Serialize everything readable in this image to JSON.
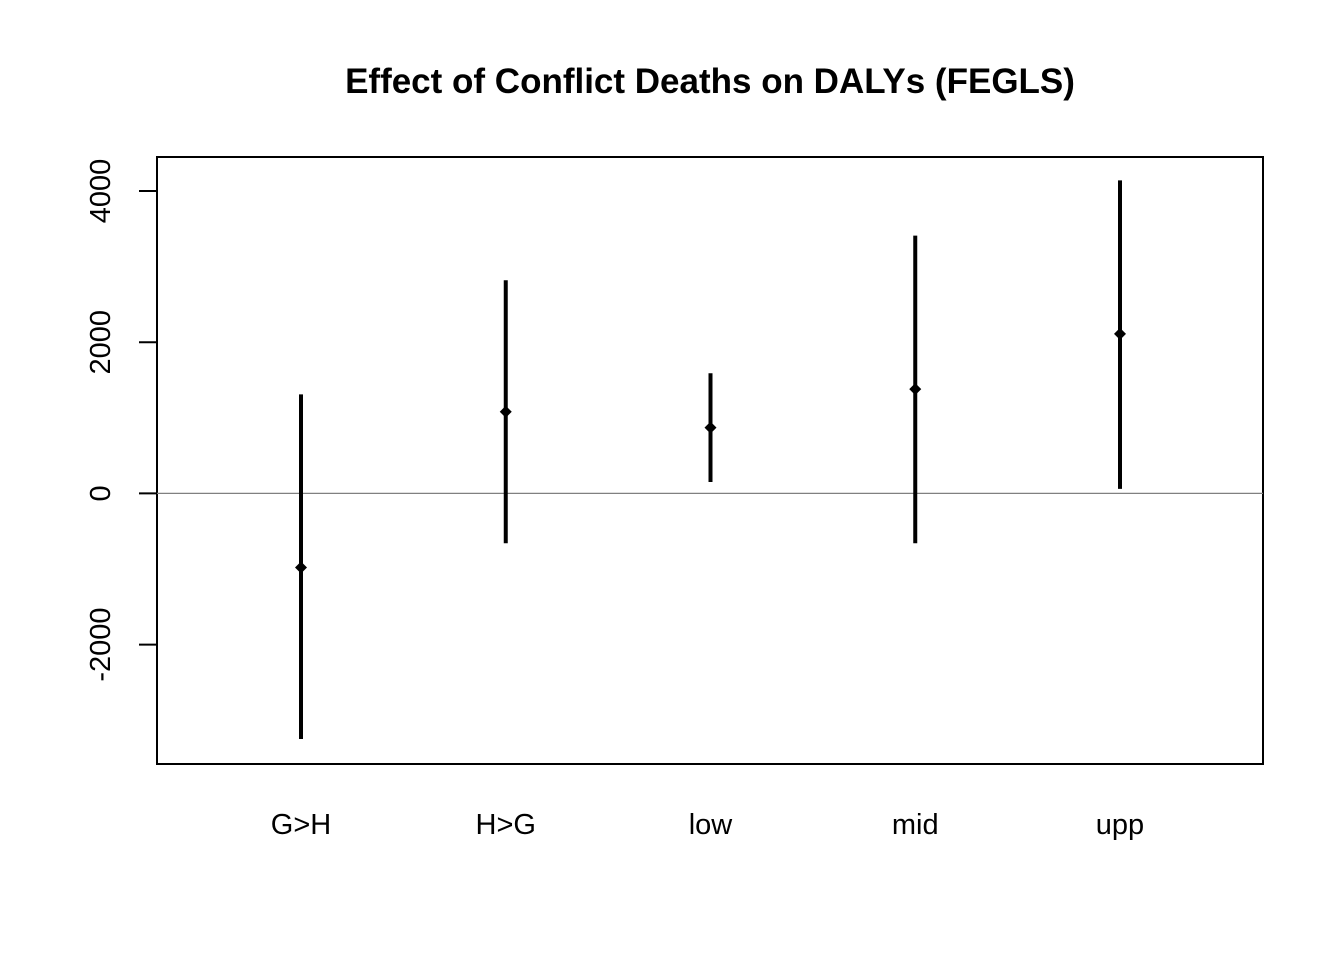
{
  "chart_data": {
    "type": "errorbar",
    "title": "Effect of Conflict Deaths on DALYs (FEGLS)",
    "xlabel": "",
    "ylabel": "",
    "categories": [
      "G>H",
      "H>G",
      "low",
      "mid",
      "upp"
    ],
    "estimates": [
      -980,
      1080,
      870,
      1380,
      2110
    ],
    "lower": [
      -3250,
      -660,
      150,
      -660,
      60
    ],
    "upper": [
      1310,
      2820,
      1590,
      3410,
      4140
    ],
    "yticks": [
      -2000,
      0,
      2000,
      4000
    ],
    "ylim": [
      -3580,
      4450
    ],
    "reference_line": 0,
    "grid": false,
    "colors": {
      "marks": "#000000",
      "reference_line": "#808080"
    }
  }
}
